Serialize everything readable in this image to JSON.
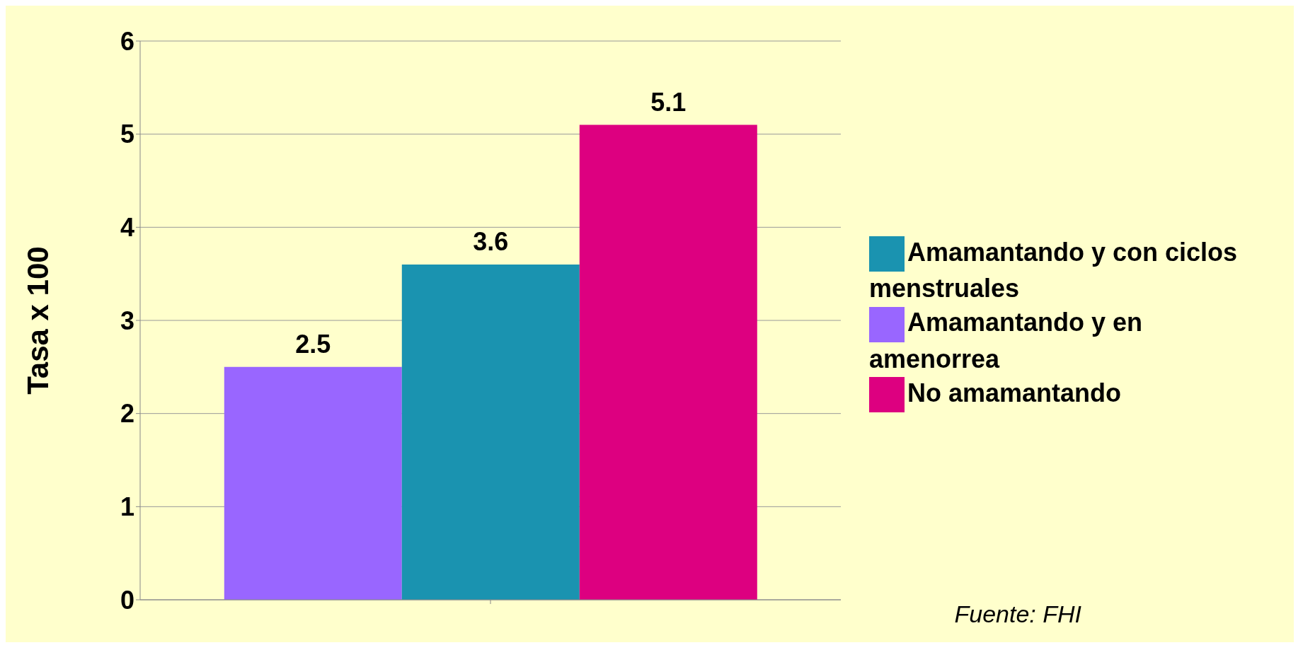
{
  "chart_data": {
    "type": "bar",
    "ylabel": "Tasa x 100",
    "categories": [
      null
    ],
    "series": [
      {
        "name": "Amamantando y en amenorrea",
        "color": "#9966ff",
        "values": [
          2.5
        ]
      },
      {
        "name": "Amamantando y con ciclos menstruales",
        "color": "#1a93b0",
        "values": [
          3.6
        ]
      },
      {
        "name": "No amamantando",
        "color": "#dd0080",
        "values": [
          5.1
        ]
      }
    ],
    "ylim": [
      0,
      6
    ],
    "yticks": [
      0,
      1,
      2,
      3,
      4,
      5,
      6
    ],
    "grid": "y",
    "legend": "right",
    "data_labels": true,
    "annotations": [
      "Fuente: FHI"
    ]
  }
}
